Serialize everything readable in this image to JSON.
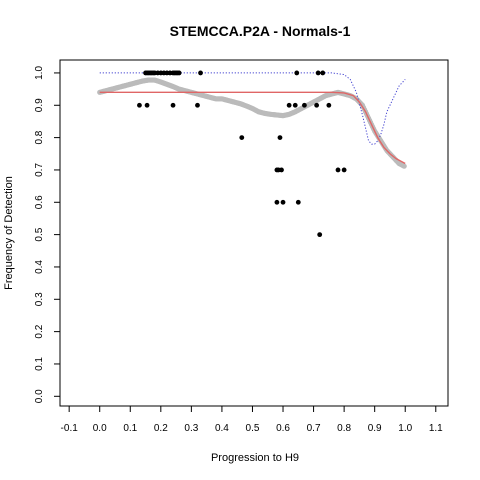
{
  "chart_data": {
    "type": "scatter",
    "title": "STEMCCA.P2A - Normals-1",
    "xlabel": "Progression to H9",
    "ylabel": "Frequency of Detection",
    "xlim": [
      -0.13,
      1.14
    ],
    "ylim": [
      -0.03,
      1.04
    ],
    "xticks": [
      "-0.1",
      "0.0",
      "0.1",
      "0.2",
      "0.3",
      "0.4",
      "0.5",
      "0.6",
      "0.7",
      "0.8",
      "0.9",
      "1.0",
      "1.1"
    ],
    "yticks": [
      "0.0",
      "0.1",
      "0.2",
      "0.3",
      "0.4",
      "0.5",
      "0.6",
      "0.7",
      "0.8",
      "0.9",
      "1.0"
    ],
    "grid": false,
    "colors": {
      "points": "#000000",
      "smooth": "#bbbbbb",
      "fit": "#e06666",
      "dotted": "#4040d0"
    },
    "series": [
      {
        "kind": "points",
        "x": [
          0.15,
          0.155,
          0.16,
          0.165,
          0.17,
          0.175,
          0.18,
          0.19,
          0.2,
          0.21,
          0.22,
          0.23,
          0.24,
          0.245,
          0.25,
          0.255,
          0.26,
          0.33,
          0.645,
          0.715,
          0.73,
          0.13,
          0.155,
          0.24,
          0.32,
          0.62,
          0.64,
          0.67,
          0.71,
          0.75,
          0.465,
          0.59,
          0.58,
          0.585,
          0.595,
          0.78,
          0.8,
          0.58,
          0.6,
          0.65,
          0.72
        ],
        "y": [
          1.0,
          1.0,
          1.0,
          1.0,
          1.0,
          1.0,
          1.0,
          1.0,
          1.0,
          1.0,
          1.0,
          1.0,
          1.0,
          1.0,
          1.0,
          1.0,
          1.0,
          1.0,
          1.0,
          1.0,
          1.0,
          0.9,
          0.9,
          0.9,
          0.9,
          0.9,
          0.9,
          0.9,
          0.9,
          0.9,
          0.8,
          0.8,
          0.7,
          0.7,
          0.7,
          0.7,
          0.7,
          0.6,
          0.6,
          0.6,
          0.5
        ]
      },
      {
        "kind": "smooth",
        "x": [
          0.0,
          0.02,
          0.04,
          0.06,
          0.08,
          0.1,
          0.12,
          0.14,
          0.16,
          0.18,
          0.2,
          0.22,
          0.24,
          0.26,
          0.28,
          0.3,
          0.32,
          0.34,
          0.36,
          0.38,
          0.4,
          0.42,
          0.44,
          0.46,
          0.48,
          0.5,
          0.52,
          0.54,
          0.56,
          0.58,
          0.6,
          0.62,
          0.64,
          0.66,
          0.68,
          0.7,
          0.72,
          0.74,
          0.76,
          0.78,
          0.8,
          0.82,
          0.84,
          0.86,
          0.88,
          0.9,
          0.92,
          0.94,
          0.96,
          0.98,
          1.0
        ],
        "y": [
          0.94,
          0.945,
          0.95,
          0.955,
          0.96,
          0.965,
          0.97,
          0.975,
          0.978,
          0.978,
          0.972,
          0.965,
          0.958,
          0.95,
          0.945,
          0.94,
          0.935,
          0.93,
          0.925,
          0.92,
          0.92,
          0.915,
          0.91,
          0.905,
          0.898,
          0.89,
          0.88,
          0.875,
          0.872,
          0.87,
          0.868,
          0.872,
          0.88,
          0.89,
          0.9,
          0.91,
          0.92,
          0.93,
          0.935,
          0.94,
          0.935,
          0.93,
          0.92,
          0.9,
          0.86,
          0.82,
          0.79,
          0.76,
          0.74,
          0.72,
          0.71
        ]
      },
      {
        "kind": "fit",
        "x": [
          0.0,
          0.1,
          0.2,
          0.3,
          0.4,
          0.5,
          0.6,
          0.7,
          0.76,
          0.8,
          0.83,
          0.85,
          0.87,
          0.89,
          0.91,
          0.93,
          0.95,
          0.97,
          0.99,
          1.0
        ],
        "y": [
          0.94,
          0.94,
          0.94,
          0.94,
          0.94,
          0.94,
          0.94,
          0.94,
          0.94,
          0.938,
          0.93,
          0.91,
          0.88,
          0.84,
          0.8,
          0.77,
          0.75,
          0.735,
          0.725,
          0.72
        ]
      },
      {
        "kind": "dotted",
        "x": [
          0.0,
          0.2,
          0.4,
          0.6,
          0.7,
          0.76,
          0.8,
          0.82,
          0.84,
          0.86,
          0.87,
          0.88,
          0.89,
          0.9,
          0.91,
          0.92,
          0.93,
          0.94,
          0.96,
          0.98,
          1.0
        ],
        "y": [
          1.0,
          1.0,
          1.0,
          1.0,
          1.0,
          1.0,
          0.995,
          0.98,
          0.94,
          0.87,
          0.83,
          0.79,
          0.78,
          0.78,
          0.79,
          0.81,
          0.84,
          0.88,
          0.92,
          0.96,
          0.98
        ]
      }
    ]
  }
}
